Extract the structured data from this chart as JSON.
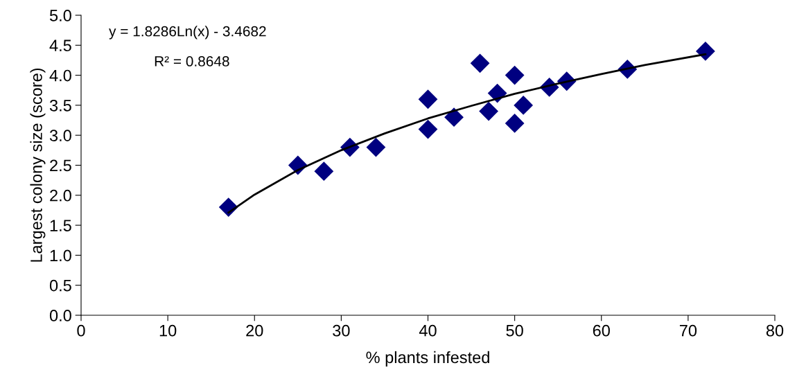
{
  "chart_data": {
    "type": "scatter",
    "xlabel": "% plants infested",
    "ylabel": "Largest colony size (score)",
    "xlim": [
      0,
      80
    ],
    "xticks": [
      0,
      10,
      20,
      30,
      40,
      50,
      60,
      70,
      80
    ],
    "ylim": [
      0,
      5.0
    ],
    "yticks": [
      {
        "value": 0,
        "label": "0.0"
      },
      {
        "value": 0.5,
        "label": "0.5"
      },
      {
        "value": 1,
        "label": "1.0"
      },
      {
        "value": 1.5,
        "label": "1.5"
      },
      {
        "value": 2,
        "label": "2.0"
      },
      {
        "value": 2.5,
        "label": "2.5"
      },
      {
        "value": 3,
        "label": "3.0"
      },
      {
        "value": 3.5,
        "label": "3.5"
      },
      {
        "value": 4,
        "label": "4.0"
      },
      {
        "value": 4.5,
        "label": "4.5"
      },
      {
        "value": 5,
        "label": "5.0"
      }
    ],
    "grid": false,
    "legend": false,
    "marker": "diamond",
    "series": [
      {
        "color": "#000080",
        "x": [
          17,
          25,
          28,
          31,
          34,
          40,
          40,
          43,
          46,
          47,
          48,
          50,
          50,
          51,
          54,
          56,
          63,
          72
        ],
        "values": [
          1.8,
          2.5,
          2.4,
          2.8,
          2.8,
          3.6,
          3.1,
          3.3,
          4.2,
          3.4,
          3.7,
          4.0,
          3.2,
          3.5,
          3.8,
          3.9,
          4.1,
          4.4
        ]
      },
      {
        "type": "line",
        "color": "#000000",
        "marker": "none",
        "line_style": "solid",
        "x": [
          17,
          20,
          25,
          30,
          35,
          40,
          45,
          50,
          55,
          60,
          65,
          72
        ],
        "values": [
          1.71,
          2.01,
          2.42,
          2.75,
          3.03,
          3.28,
          3.49,
          3.69,
          3.86,
          4.02,
          4.17,
          4.35
        ]
      }
    ],
    "annotations": [
      "y = 1.8286Ln(x) - 3.4682",
      "R² = 0.8648"
    ]
  }
}
